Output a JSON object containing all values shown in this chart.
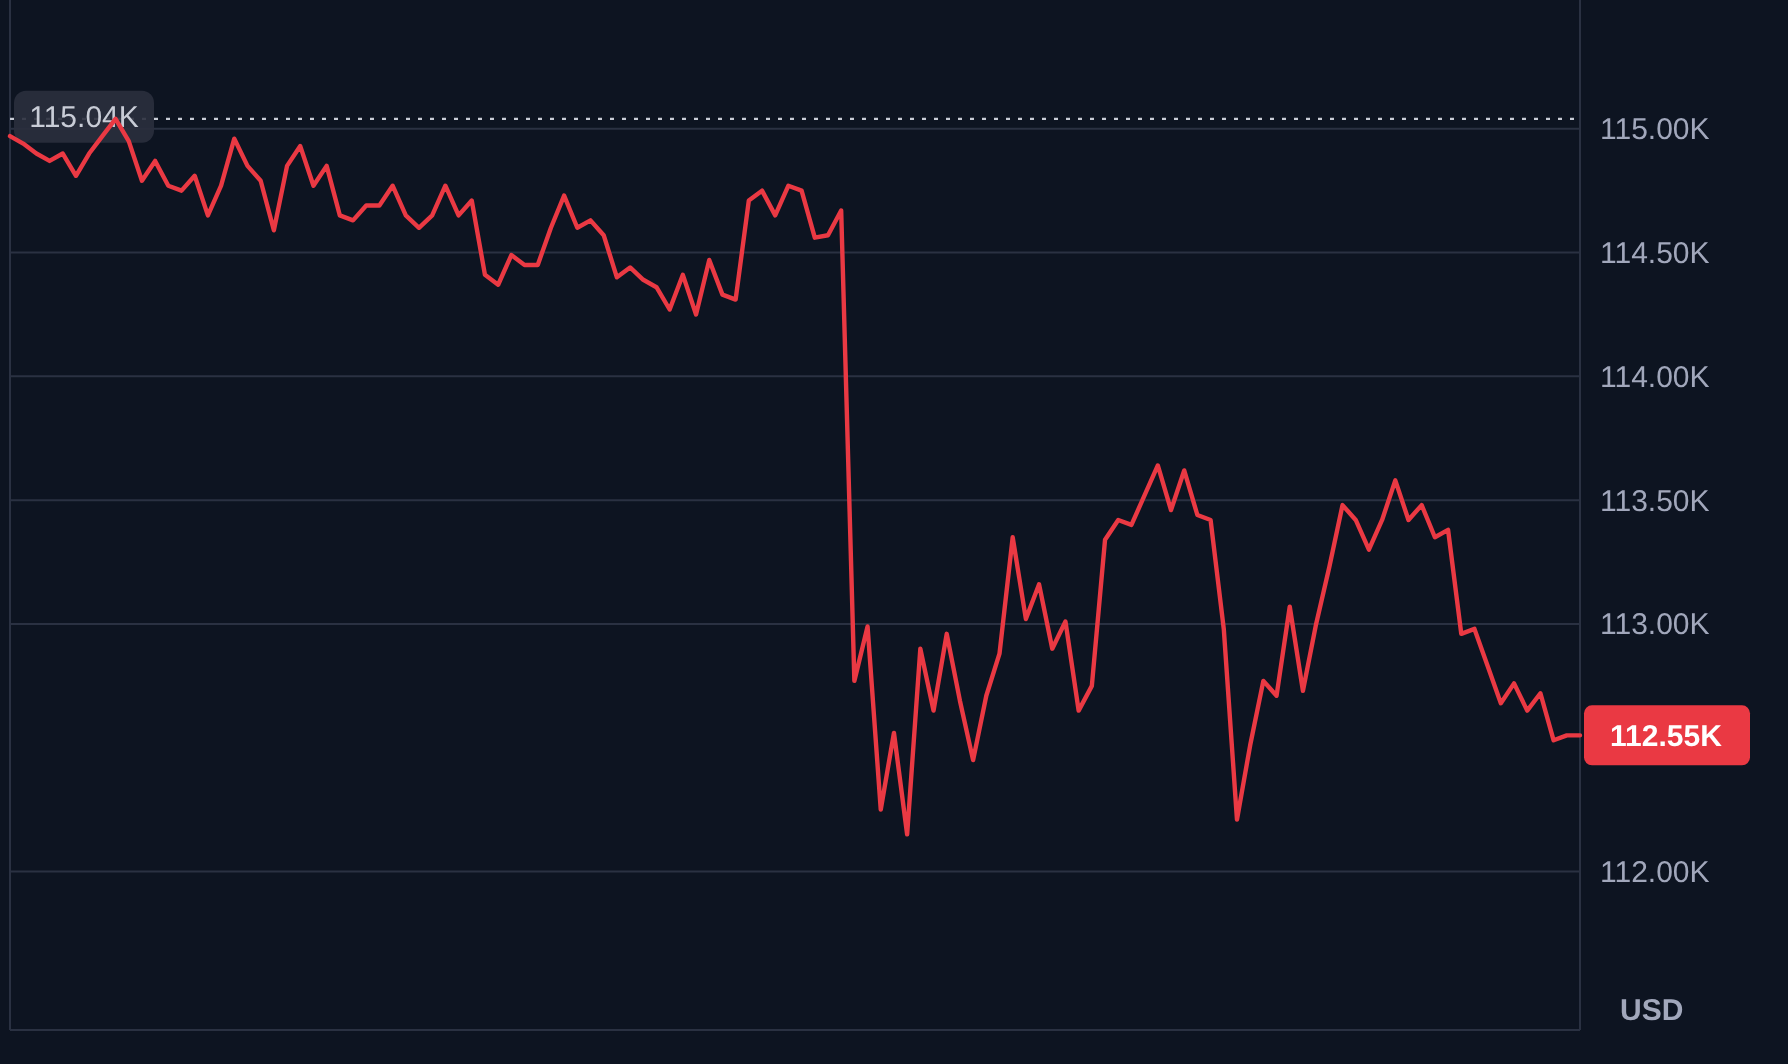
{
  "chart_data": {
    "type": "line",
    "ylabel": "USD",
    "categories": [
      null,
      null,
      null,
      null,
      null,
      null,
      null,
      null,
      null,
      null,
      null,
      null,
      null,
      null,
      null,
      null,
      null,
      null,
      null,
      null,
      null,
      null,
      null,
      null,
      null,
      null,
      null,
      null,
      null,
      null,
      null,
      null,
      null,
      null,
      null,
      null,
      null,
      null,
      null,
      null,
      null,
      null,
      null,
      null,
      null,
      null,
      null,
      null,
      null,
      null,
      null,
      null,
      null,
      null,
      null,
      null,
      null,
      null,
      null,
      null,
      null,
      null,
      null,
      null,
      null,
      null,
      null,
      null,
      null,
      null,
      null,
      null,
      null,
      null,
      null,
      null,
      null,
      null,
      null,
      null,
      null,
      null,
      null,
      null,
      null,
      null,
      null,
      null,
      null,
      null,
      null,
      null,
      null,
      null,
      null,
      null,
      null,
      null,
      null,
      null,
      null,
      null,
      null,
      null,
      null,
      null,
      null,
      null,
      null,
      null,
      null,
      null,
      null,
      null,
      null,
      null,
      null,
      null,
      null,
      null
    ],
    "series": [
      {
        "color": "#ea3943",
        "values": [
          114970,
          114940,
          114900,
          114870,
          114900,
          114810,
          114900,
          114970,
          115040,
          114950,
          114790,
          114870,
          114770,
          114750,
          114810,
          114650,
          114770,
          114960,
          114850,
          114790,
          114590,
          114850,
          114930,
          114770,
          114850,
          114650,
          114630,
          114690,
          114690,
          114770,
          114650,
          114600,
          114650,
          114770,
          114650,
          114710,
          114410,
          114370,
          114490,
          114450,
          114450,
          114600,
          114730,
          114600,
          114630,
          114570,
          114400,
          114440,
          114390,
          114360,
          114270,
          114410,
          114250,
          114470,
          114330,
          114310,
          114710,
          114750,
          114650,
          114770,
          114750,
          114560,
          114570,
          114670,
          112770,
          112990,
          112250,
          112560,
          112150,
          112900,
          112650,
          112960,
          112690,
          112450,
          112710,
          112880,
          113350,
          113020,
          113160,
          112900,
          113010,
          112650,
          112750,
          113340,
          113420,
          113400,
          113520,
          113640,
          113460,
          113620,
          113440,
          113420,
          112980,
          112210,
          112510,
          112770,
          112710,
          113070,
          112730,
          113000,
          113230,
          113480,
          113420,
          113300,
          113420,
          113580,
          113420,
          113480,
          113350,
          113380,
          112960,
          112980,
          112830,
          112680,
          112760,
          112650,
          112720,
          112530,
          112550,
          112550
        ]
      }
    ],
    "ylim": [
      111360,
      115520
    ],
    "yticks": [
      {
        "value": 112000,
        "label": "112.00K"
      },
      {
        "value": 113000,
        "label": "113.00K"
      },
      {
        "value": 113500,
        "label": "113.50K"
      },
      {
        "value": 114000,
        "label": "114.00K"
      },
      {
        "value": 114500,
        "label": "114.50K"
      },
      {
        "value": 115000,
        "label": "115.00K"
      }
    ],
    "grid": "y",
    "ref_lines": [
      {
        "axis": "y",
        "value": 115040,
        "label": "115.04K",
        "line_style": "dotted",
        "color": "#c8ccd6"
      }
    ],
    "annotations": [
      "112.55K"
    ]
  }
}
